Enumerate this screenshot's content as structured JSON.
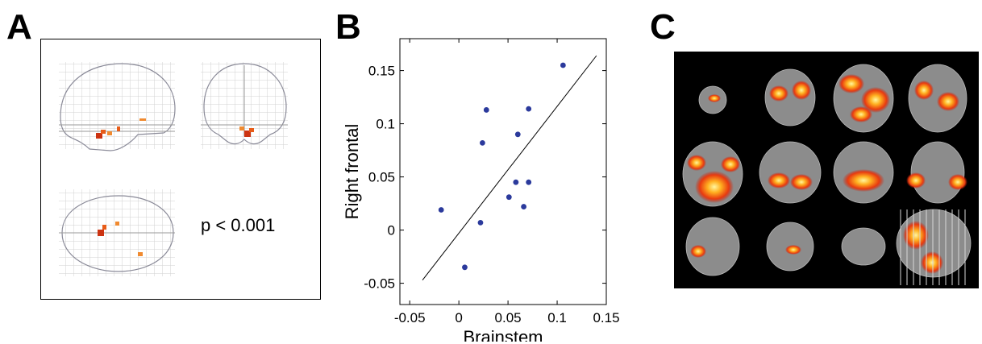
{
  "panels": {
    "a": {
      "letter": "A",
      "threshold_label": "p < 0.001"
    },
    "b": {
      "letter": "B"
    },
    "c": {
      "letter": "C"
    }
  },
  "chart_data": {
    "type": "scatter",
    "xlabel": "Brainstem",
    "ylabel": "Right frontal",
    "xlim": [
      -0.06,
      0.15
    ],
    "ylim": [
      -0.07,
      0.18
    ],
    "xticks": [
      -0.05,
      0,
      0.05,
      0.1,
      0.15
    ],
    "xtick_labels": [
      "-0.05",
      "0",
      "0.05",
      "0.1",
      "0.15"
    ],
    "yticks": [
      -0.05,
      0,
      0.05,
      0.1,
      0.15
    ],
    "ytick_labels": [
      "-0.05",
      "0",
      "0.05",
      "0.1",
      "0.15"
    ],
    "points": [
      {
        "x": -0.018,
        "y": 0.019
      },
      {
        "x": 0.006,
        "y": -0.035
      },
      {
        "x": 0.022,
        "y": 0.007
      },
      {
        "x": 0.024,
        "y": 0.082
      },
      {
        "x": 0.028,
        "y": 0.113
      },
      {
        "x": 0.051,
        "y": 0.031
      },
      {
        "x": 0.058,
        "y": 0.045
      },
      {
        "x": 0.06,
        "y": 0.09
      },
      {
        "x": 0.066,
        "y": 0.022
      },
      {
        "x": 0.071,
        "y": 0.045
      },
      {
        "x": 0.071,
        "y": 0.114
      },
      {
        "x": 0.106,
        "y": 0.155
      }
    ],
    "fit_line": {
      "x": [
        -0.037,
        0.14
      ],
      "y": [
        -0.047,
        0.164
      ]
    },
    "marker_color": "#2b3a9c",
    "grid": false
  }
}
